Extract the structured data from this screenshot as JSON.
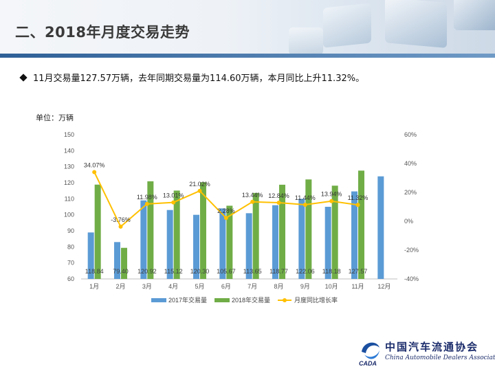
{
  "header": {
    "title": "二、2018年月度交易走势"
  },
  "summary": {
    "text": "11月交易量127.57万辆，去年同期交易量为114.60万辆，本月同比上升11.32%。"
  },
  "unit_label": "单位：万辆",
  "logo": {
    "cn": "中国汽车流通协会",
    "en": "China Automobile Dealers Association",
    "badge": "CADA"
  },
  "colors": {
    "s2017": "#5b9bd5",
    "s2018": "#70ad47",
    "rate": "#ffc000",
    "title_bar": "#2e5f96"
  },
  "chart_data": {
    "type": "bar",
    "categories": [
      "1月",
      "2月",
      "3月",
      "4月",
      "5月",
      "6月",
      "7月",
      "8月",
      "9月",
      "10月",
      "11月",
      "12月"
    ],
    "series": [
      {
        "name": "2017年交易量",
        "values": [
          89,
          83,
          109,
          103,
          100,
          104,
          101,
          106,
          110,
          105,
          114.6,
          124
        ],
        "axis": "left"
      },
      {
        "name": "2018年交易量",
        "values": [
          118.84,
          79.4,
          120.92,
          115.12,
          120.3,
          105.67,
          113.65,
          118.77,
          122.06,
          118.18,
          127.57,
          null
        ],
        "axis": "left",
        "data_labels": [
          "118.84",
          "79.40",
          "120.92",
          "115.12",
          "120.30",
          "105.67",
          "113.65",
          "118.77",
          "122.06",
          "118.18",
          "127.57",
          ""
        ]
      },
      {
        "name": "月度同比增长率",
        "type": "line",
        "values": [
          34.07,
          -3.76,
          11.98,
          13.01,
          21.02,
          2.28,
          13.44,
          12.84,
          11.44,
          13.94,
          11.32,
          null
        ],
        "axis": "right",
        "data_labels": [
          "34.07%",
          "-3.76%",
          "11.98%",
          "13.01%",
          "21.02%",
          "2.28%",
          "13.44%",
          "12.84%",
          "11.44%",
          "13.94%",
          "11.32%",
          ""
        ]
      }
    ],
    "ylim": [
      60,
      150
    ],
    "yticks": [
      "60",
      "70",
      "80",
      "90",
      "100",
      "110",
      "120",
      "130",
      "140",
      "150"
    ],
    "y2lim": [
      -40,
      60
    ],
    "y2ticks": [
      "-40%",
      "-20%",
      "0%",
      "20%",
      "40%",
      "60%"
    ],
    "grid": false,
    "legend_position": "bottom"
  }
}
